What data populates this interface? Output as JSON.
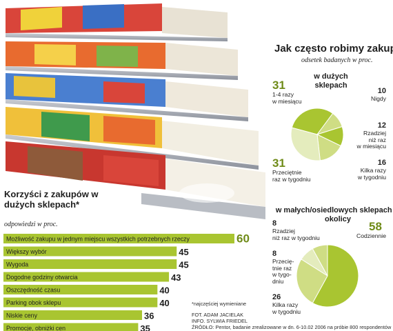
{
  "survey": {
    "title": "Jak często robimy zakupy",
    "subtitle": "odsetek badanych w proc."
  },
  "left_title": "Korzyści z zakupów w dużych sklepach*",
  "left_subtitle": "odpowiedzi w proc.",
  "notes": {
    "footnote": "*najczęściej wymieniane",
    "credits_1": "FOT. ADAM JACIELAK",
    "credits_2": "INFO. SYLWIA FRIEDEL",
    "source": "ŹRÓDŁO: Pentor, badanie zrealizowane w dn. 6-10.02 2006 na próbie 800 respondentów"
  },
  "colors": {
    "accent": "#a9c531",
    "light": "#cfdd84",
    "pale": "#e4ecbd",
    "dark_green": "#6f8b18"
  },
  "chart_data": [
    {
      "type": "bar",
      "title": "Korzyści z zakupów w dużych sklepach*",
      "subtitle": "odpowiedzi w proc.",
      "categories": [
        "Możliwość zakupu w jednym miejscu wszystkich potrzebnych rzeczy",
        "Większy wybór",
        "Wygoda",
        "Dogodne godziny otwarcia",
        "Oszczędność czasu",
        "Parking obok sklepu",
        "Niskie ceny",
        "Promocje, obniżki cen"
      ],
      "values": [
        60,
        45,
        45,
        43,
        40,
        40,
        36,
        35
      ]
    },
    {
      "type": "pie",
      "title": "w dużych sklepach",
      "categories": [
        "1-4 razy w miesiącu",
        "Nigdy",
        "Rzadziej niż raz w miesiącu",
        "Kilka razy w tygodniu",
        "Przeciętnie raz w tygodniu"
      ],
      "labels": [
        "1-4 razy\nw miesiącu",
        "Nigdy",
        "Rzadziej\nniż raz\nw miesiącu",
        "Kilka razy\nw tygodniu",
        "Przeciętnie\nraz w tygodniu"
      ],
      "values": [
        31,
        10,
        12,
        16,
        31
      ]
    },
    {
      "type": "pie",
      "title": "w małych/osiedlowych sklepach w okolicy",
      "categories": [
        "Codziennie",
        "Kilka razy w tygodniu",
        "Przeciętnie raz w tygodniu",
        "Rzadziej niż raz w tygodniu"
      ],
      "labels": [
        "Codziennie",
        "Kilka razy\nw tygodniu",
        "Przecię-\ntnie raz\nw tygo-\ndniu",
        "Rzadziej\nniż raz w tygodniu"
      ],
      "values": [
        58,
        26,
        8,
        8
      ]
    }
  ]
}
